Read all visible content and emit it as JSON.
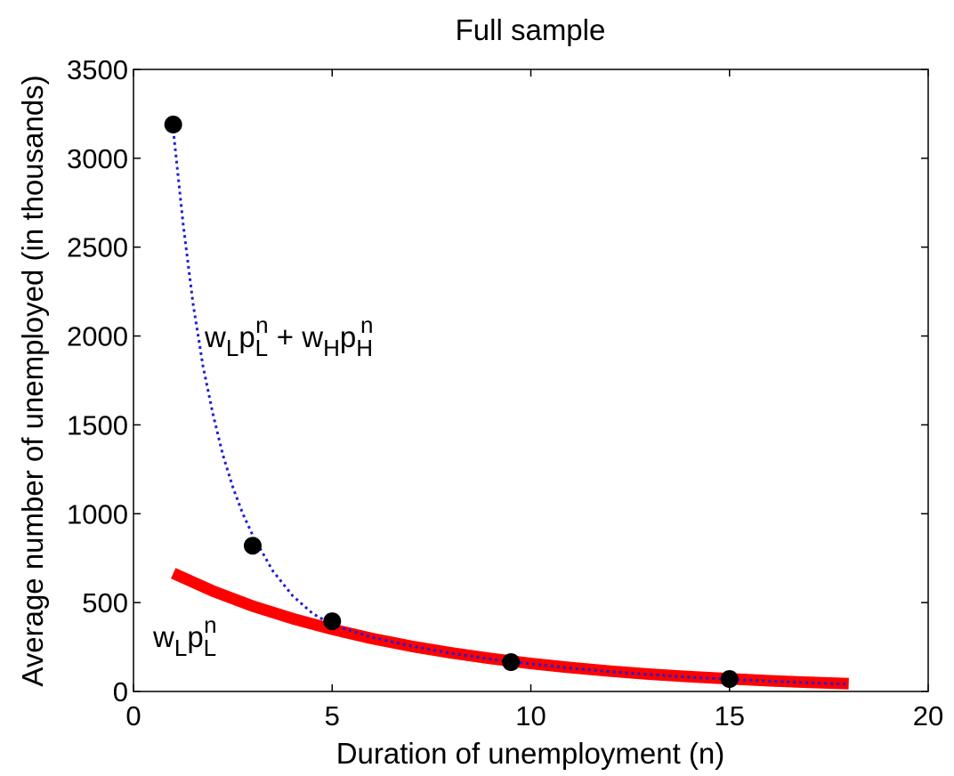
{
  "chart_data": {
    "type": "line",
    "title": "Full sample",
    "xlabel": "Duration of unemployment (n)",
    "ylabel": "Average number of unemployed (in thousands)",
    "xlim": [
      0,
      20
    ],
    "ylim": [
      0,
      3500
    ],
    "xticks": [
      0,
      5,
      10,
      15,
      20
    ],
    "yticks": [
      0,
      500,
      1000,
      1500,
      2000,
      2500,
      3000,
      3500
    ],
    "grid": false,
    "series": [
      {
        "style": "dotted",
        "color": "#1f1fd6",
        "x": [
          1,
          1.25,
          1.5,
          1.75,
          2,
          2.25,
          2.5,
          2.75,
          3,
          3.5,
          4,
          4.5,
          5,
          6,
          7,
          8,
          9,
          10,
          11,
          12,
          13,
          14,
          15,
          16,
          17,
          18
        ],
        "y": [
          3160,
          2630,
          2180,
          1830,
          1560,
          1330,
          1150,
          1000,
          880,
          680,
          540,
          440,
          375,
          305,
          255,
          215,
          182,
          155,
          131,
          111,
          95,
          80,
          68,
          58,
          49,
          41
        ]
      },
      {
        "style": "solid",
        "color": "#ff0000",
        "x": [
          1,
          2,
          3,
          4,
          5,
          6,
          7,
          8,
          9,
          10,
          11,
          12,
          13,
          14,
          15,
          16,
          17,
          18
        ],
        "y": [
          665,
          565,
          480,
          410,
          350,
          298,
          254,
          217,
          185,
          157,
          134,
          114,
          97,
          83,
          71,
          60,
          51,
          44
        ]
      }
    ],
    "points": {
      "x": [
        1,
        3,
        5,
        9.5,
        15
      ],
      "y": [
        3190,
        820,
        395,
        165,
        70
      ],
      "color": "#000000"
    },
    "annotations": [
      {
        "id": "mixture-label",
        "parts": [
          {
            "t": "w",
            "s": ""
          },
          {
            "t": "L",
            "s": "sub"
          },
          {
            "t": "p",
            "s": ""
          },
          {
            "t": "L",
            "s": "sub"
          },
          {
            "t": "n",
            "s": "sup"
          },
          {
            "t": " + w",
            "s": ""
          },
          {
            "t": "H",
            "s": "sub"
          },
          {
            "t": "p",
            "s": ""
          },
          {
            "t": "H",
            "s": "sub"
          },
          {
            "t": "n",
            "s": "sup"
          }
        ]
      },
      {
        "id": "low-type-label",
        "parts": [
          {
            "t": "w",
            "s": ""
          },
          {
            "t": "L",
            "s": "sub"
          },
          {
            "t": "p",
            "s": ""
          },
          {
            "t": "L",
            "s": "sub"
          },
          {
            "t": "n",
            "s": "sup"
          }
        ]
      }
    ]
  }
}
